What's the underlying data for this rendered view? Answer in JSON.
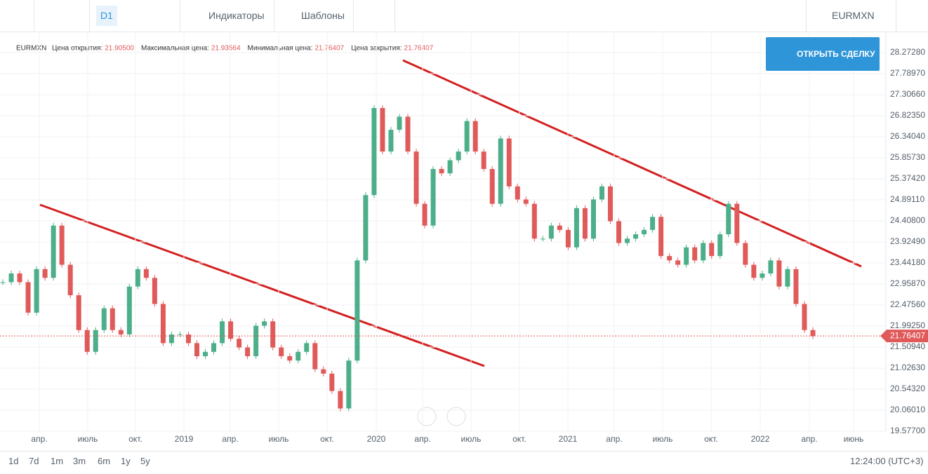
{
  "toolbar": {
    "interval": "D1",
    "indicators": "Индикаторы",
    "templates": "Шаблоны",
    "symbol": "EURMXN"
  },
  "button": "ОТКРЫТЬ СДЕЛКУ",
  "info": {
    "symbol": "EURMXN",
    "open_label": "Цена открытия:",
    "open": "21.90500",
    "high_label": "Максимальная цена:",
    "high": "21.93564",
    "low_label": "Минимальная цена:",
    "low": "21.76407",
    "close_label": "Цена закрытия:",
    "close": "21.76407"
  },
  "periods": [
    "1d",
    "7d",
    "1m",
    "3m",
    "6m",
    "1y",
    "5y"
  ],
  "time": "12:24:00 (UTC+3)",
  "chart_data": {
    "type": "candlestick",
    "xticks": [
      "апр.",
      "июль",
      "окт.",
      "2019",
      "апр.",
      "июль",
      "окт.",
      "2020",
      "апр.",
      "июль",
      "окт.",
      "2021",
      "апр.",
      "июль",
      "окт.",
      "2022",
      "апр.",
      "июнь"
    ],
    "ylim": [
      19.577,
      28.7559
    ],
    "yticks": [
      {
        "value": 28.2728,
        "label": "28.27280"
      },
      {
        "value": 27.7897,
        "label": "27.78970"
      },
      {
        "value": 27.3066,
        "label": "27.30660"
      },
      {
        "value": 26.8235,
        "label": "26.82350"
      },
      {
        "value": 26.3404,
        "label": "26.34040"
      },
      {
        "value": 25.8573,
        "label": "25.85730"
      },
      {
        "value": 25.3742,
        "label": "25.37420"
      },
      {
        "value": 24.8911,
        "label": "24.89110"
      },
      {
        "value": 24.408,
        "label": "24.40800"
      },
      {
        "value": 23.9249,
        "label": "23.92490"
      },
      {
        "value": 23.4418,
        "label": "23.44180"
      },
      {
        "value": 22.9587,
        "label": "22.95870"
      },
      {
        "value": 22.4756,
        "label": "22.47560"
      },
      {
        "value": 21.9925,
        "label": "21.99250"
      },
      {
        "value": 21.5094,
        "label": "21.50940"
      },
      {
        "value": 21.0263,
        "label": "21.02630"
      },
      {
        "value": 20.5432,
        "label": "20.54320"
      },
      {
        "value": 20.0601,
        "label": "20.06010"
      },
      {
        "value": 19.577,
        "label": "19.57700"
      }
    ],
    "last_price": 21.76407,
    "series": [
      {
        "name": "EURMXN",
        "up_color": "#4caf8a",
        "down_color": "#e05a5a",
        "values": [
          23.0,
          23.2,
          23.0,
          22.3,
          23.3,
          23.1,
          24.3,
          23.4,
          22.7,
          21.9,
          21.4,
          21.9,
          22.4,
          21.9,
          21.8,
          22.9,
          23.3,
          23.1,
          22.5,
          21.6,
          21.8,
          21.8,
          21.6,
          21.3,
          21.4,
          21.6,
          22.1,
          21.7,
          21.5,
          21.3,
          22.0,
          22.1,
          21.5,
          21.3,
          21.2,
          21.4,
          21.6,
          21.0,
          20.9,
          20.5,
          20.1,
          21.2,
          23.5,
          25.0,
          27.0,
          26.0,
          26.5,
          26.8,
          26.0,
          24.8,
          24.3,
          25.6,
          25.5,
          25.8,
          26.0,
          26.7,
          26.0,
          25.6,
          24.8,
          26.3,
          25.2,
          24.9,
          24.8,
          24.0,
          24.0,
          24.3,
          24.2,
          23.8,
          24.7,
          24.0,
          24.9,
          25.2,
          24.4,
          23.9,
          24.0,
          24.1,
          24.2,
          24.5,
          23.6,
          23.5,
          23.4,
          23.8,
          23.5,
          23.9,
          23.6,
          24.1,
          24.8,
          23.9,
          23.4,
          23.1,
          23.2,
          23.5,
          22.9,
          23.3,
          22.5,
          21.9,
          21.76
        ]
      }
    ]
  }
}
